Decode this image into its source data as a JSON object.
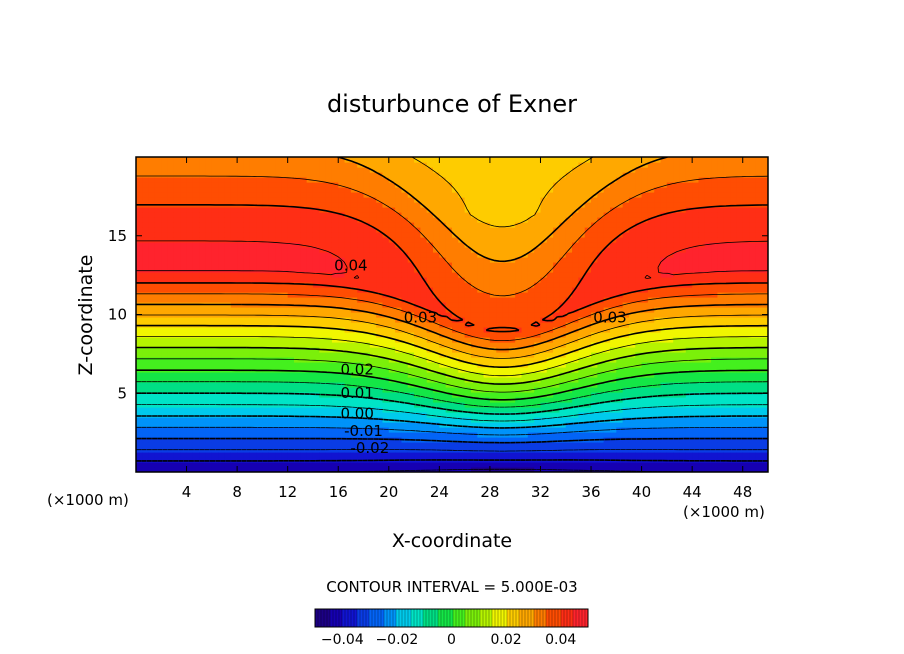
{
  "chart_data": {
    "type": "heatmap",
    "subtype": "filled-contour",
    "title": "disturbunce of Exner",
    "xlabel": "X-coordinate",
    "ylabel": "Z-coordinate",
    "x_unit_left": "(×1000 m)",
    "x_unit_right": "(×1000 m)",
    "xlim": [
      0,
      50
    ],
    "ylim": [
      0,
      20
    ],
    "x_ticks": [
      "4",
      "8",
      "12",
      "16",
      "20",
      "24",
      "28",
      "32",
      "36",
      "40",
      "44",
      "48"
    ],
    "y_ticks": [
      "5",
      "10",
      "15"
    ],
    "contour_interval_text": "CONTOUR INTERVAL = 5.000E-03",
    "contour_labels": [
      {
        "text": "0.04",
        "x": 17,
        "z": 12.8
      },
      {
        "text": "0.03",
        "x": 22.5,
        "z": 9.5
      },
      {
        "text": "0.03",
        "x": 37.5,
        "z": 9.5
      },
      {
        "text": "0.02",
        "x": 17.5,
        "z": 6.2
      },
      {
        "text": "0.01",
        "x": 17.5,
        "z": 4.7
      },
      {
        "text": "0.00",
        "x": 17.5,
        "z": 3.4
      },
      {
        "text": "-0.01",
        "x": 18.0,
        "z": 2.3
      },
      {
        "text": "-0.02",
        "x": 18.5,
        "z": 1.2
      }
    ],
    "colorbar": {
      "ticks": [
        "-0.04",
        "-0.02",
        "0",
        "0.02",
        "0.04"
      ],
      "tick_values": [
        -0.04,
        -0.02,
        0,
        0.02,
        0.04
      ],
      "range": [
        -0.05,
        0.05
      ]
    },
    "field_range": [
      -0.045,
      0.046
    ],
    "colors": {
      "low": "#1a00b0",
      "high": "#ff2020",
      "mid": "#30f030"
    }
  }
}
